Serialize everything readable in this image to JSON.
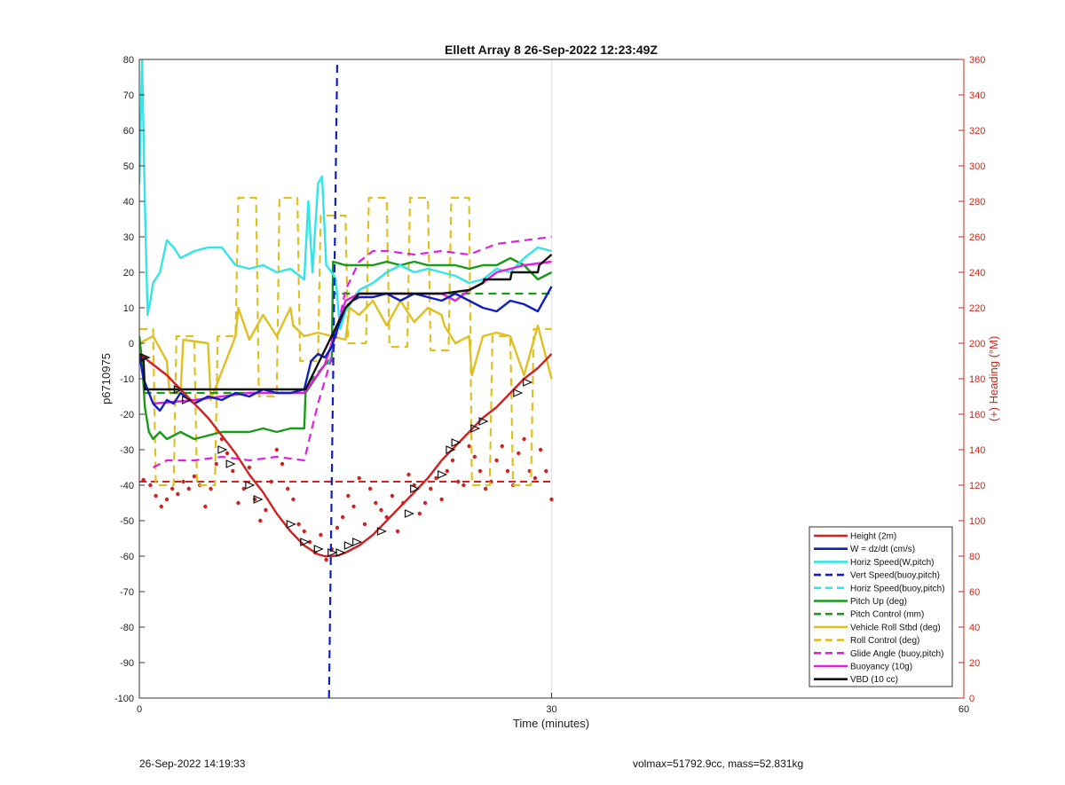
{
  "chart_data": {
    "type": "line",
    "title": "Ellett Array 8 26-Sep-2022 12:23:49Z",
    "xlabel": "Time (minutes)",
    "ylabel": "p6710975",
    "y2label": "(+) Heading (°M)",
    "xlim": [
      0,
      60
    ],
    "ylim": [
      -100,
      80
    ],
    "y2lim": [
      0,
      360
    ],
    "xticks": [
      "0",
      "30",
      "60"
    ],
    "yticks": [
      "-100",
      "-90",
      "-80",
      "-70",
      "-60",
      "-50",
      "-40",
      "-30",
      "-20",
      "-10",
      "0",
      "10",
      "20",
      "30",
      "40",
      "50",
      "60",
      "70",
      "80"
    ],
    "y2ticks": [
      "0",
      "20",
      "40",
      "60",
      "80",
      "100",
      "120",
      "140",
      "160",
      "180",
      "200",
      "220",
      "240",
      "260",
      "280",
      "300",
      "320",
      "340",
      "360"
    ],
    "grid": "x-only",
    "legend_position": "bottom-right",
    "series": [
      {
        "name": "Height (2m)",
        "color": "#d42020",
        "style": "solid",
        "x": [
          0,
          1,
          2,
          3,
          4,
          5,
          6,
          7,
          8,
          9,
          10,
          11,
          12,
          13,
          13.5,
          14,
          14.5,
          15,
          16,
          17,
          18,
          19,
          20,
          21,
          22,
          23,
          24,
          25,
          26,
          27,
          28,
          29,
          30
        ],
        "y": [
          -3,
          -6,
          -9,
          -13,
          -17,
          -21,
          -26,
          -31,
          -37,
          -42,
          -48,
          -53,
          -57,
          -59.5,
          -60,
          -60,
          -59.8,
          -59,
          -57,
          -54,
          -50,
          -46,
          -42,
          -38,
          -33,
          -29,
          -25,
          -21,
          -18,
          -14,
          -10,
          -7,
          -3
        ]
      },
      {
        "name": "W = dz/dt (cm/s)",
        "color": "#1020c0",
        "style": "solid",
        "x": [
          0,
          0.3,
          0.6,
          1,
          1.5,
          2,
          2.5,
          3,
          4,
          5,
          6,
          7,
          8,
          9,
          10,
          11,
          12,
          12.5,
          13,
          13.5,
          14,
          14.5,
          15,
          15.5,
          16,
          17,
          18,
          19,
          20,
          21,
          22,
          23,
          24,
          25,
          26,
          27,
          28,
          29,
          30
        ],
        "y": [
          -3,
          -10,
          -13,
          -17,
          -19,
          -16,
          -17,
          -14,
          -17,
          -15,
          -16,
          -14,
          -15,
          -13,
          -14,
          -14,
          -13,
          -5,
          -3,
          -4,
          -1,
          5,
          10,
          12,
          13,
          13,
          14,
          12,
          14,
          13,
          12,
          14,
          12,
          10,
          9,
          12,
          11,
          9,
          16
        ]
      },
      {
        "name": "Horiz Speed(W,pitch)",
        "color": "#33e5e8",
        "style": "solid",
        "x": [
          0,
          0.2,
          0.4,
          0.6,
          0.8,
          1,
          1.5,
          2,
          2.5,
          3,
          4,
          5,
          6,
          7,
          8,
          9,
          10,
          11,
          12,
          12.3,
          12.6,
          13,
          13.3,
          13.6,
          14,
          14.3,
          14.6,
          15,
          16,
          17,
          18,
          19,
          20,
          21,
          22,
          23,
          24,
          25,
          26,
          27,
          28,
          29,
          30
        ],
        "y": [
          45,
          80,
          40,
          8,
          12,
          17,
          20,
          29,
          27,
          24,
          26,
          27,
          27,
          22,
          21,
          22,
          20,
          21,
          18,
          40,
          20,
          45,
          47,
          22,
          20,
          18,
          4,
          9,
          15,
          17,
          20,
          22,
          20,
          21,
          20,
          19,
          17,
          18,
          21,
          20,
          24,
          27,
          26
        ]
      },
      {
        "name": "Vert Speed(buoy,pitch)",
        "color": "#1020c0",
        "style": "dashed",
        "x": [
          13.8,
          14.1,
          14.4
        ],
        "y": [
          -100,
          -10,
          80
        ]
      },
      {
        "name": "Horiz Speed(buoy,pitch)",
        "color": "#33e5e8",
        "style": "dashed",
        "x": [
          13.8,
          14.3,
          15
        ],
        "y": [
          -6,
          3,
          10
        ]
      },
      {
        "name": "Pitch Up (deg)",
        "color": "#1a9a1a",
        "style": "solid",
        "x": [
          0,
          0.2,
          0.4,
          0.7,
          1,
          1.5,
          2,
          3,
          4,
          5,
          6,
          7,
          8,
          9,
          10,
          11,
          12,
          12.1,
          13.5,
          14,
          14.1,
          15,
          16,
          17,
          18,
          19,
          20,
          21,
          22,
          23,
          24,
          25,
          26,
          27,
          28,
          29,
          30
        ],
        "y": [
          2,
          -5,
          -18,
          -25,
          -27,
          -25,
          -27,
          -25,
          -27,
          -26,
          -25,
          -25,
          -25,
          -24,
          -25,
          -24,
          -24,
          -14,
          -6,
          -5,
          23,
          22,
          22,
          22,
          23,
          22,
          23,
          22,
          22,
          22,
          21,
          22,
          22,
          24,
          22,
          18,
          20
        ]
      },
      {
        "name": "Pitch Control (mm)",
        "color": "#1a9a1a",
        "style": "dashed",
        "x": [
          0.3,
          12,
          12.1,
          14,
          14.1,
          26,
          30
        ],
        "y": [
          -14,
          -14,
          -12,
          -4,
          14,
          14,
          14
        ]
      },
      {
        "name": "Vehicle Roll Stbd (deg)",
        "color": "#e0c020",
        "style": "solid",
        "x": [
          0,
          1,
          2,
          2.2,
          3,
          3.2,
          5,
          5.2,
          7,
          7.2,
          8,
          9,
          10,
          11,
          11.2,
          12,
          13,
          14,
          15,
          15.3,
          16,
          17,
          18,
          19,
          20,
          21,
          22,
          22.2,
          23,
          24,
          24.2,
          25,
          26,
          27,
          28,
          29,
          30
        ],
        "y": [
          0,
          2,
          -5,
          -14,
          -14,
          1,
          0,
          -16,
          2,
          10,
          1,
          8,
          2,
          10,
          5,
          2,
          3,
          2,
          1,
          10,
          8,
          12,
          5,
          12,
          6,
          10,
          8,
          5,
          0,
          2,
          -9,
          2,
          3,
          2,
          -9,
          5,
          -10
        ]
      },
      {
        "name": "Roll Control (deg)",
        "color": "#e0c020",
        "style": "dashed",
        "x": [
          0,
          1,
          1.2,
          2.5,
          2.7,
          4,
          4.2,
          5.5,
          5.7,
          7,
          7.2,
          8.5,
          8.7,
          10,
          10.2,
          11.5,
          11.7,
          13,
          13.2,
          15,
          15.2,
          16.5,
          16.7,
          18,
          18.2,
          19.5,
          19.7,
          21,
          21.2,
          22.5,
          22.7,
          24,
          24.2,
          25.5,
          25.7,
          27,
          27.2,
          28.5,
          28.7,
          30
        ],
        "y": [
          4,
          4,
          -40,
          -40,
          2,
          2,
          -40,
          -40,
          2,
          2,
          41,
          41,
          -15,
          -15,
          41,
          41,
          -5,
          -5,
          36,
          36,
          0,
          0,
          41,
          41,
          -1,
          -1,
          41,
          41,
          -2,
          -2,
          41,
          41,
          -40,
          -40,
          2,
          2,
          -40,
          -40,
          4,
          4
        ]
      },
      {
        "name": "Glide Angle (buoy,pitch)",
        "color": "#e020e0",
        "style": "dashed",
        "x": [
          1,
          2,
          4,
          6,
          8,
          10,
          12,
          13,
          14,
          15,
          16,
          17,
          18,
          20,
          22,
          24,
          26,
          28,
          30
        ],
        "y": [
          -35,
          -33,
          -33,
          -32,
          -33,
          -32,
          -33,
          -17,
          -4,
          15,
          23,
          26,
          26,
          25,
          26,
          25,
          28,
          29,
          30
        ]
      },
      {
        "name": "Buoyancy (10g)",
        "color": "#e020e0",
        "style": "solid",
        "x": [
          1,
          4,
          8,
          12,
          13.5,
          15,
          16,
          20,
          22,
          23,
          24,
          25,
          26,
          28,
          30
        ],
        "y": [
          -17,
          -16,
          -14,
          -14,
          -6,
          12,
          14,
          14,
          14,
          12,
          15,
          17,
          20,
          22,
          23
        ]
      },
      {
        "name": "VBD (10 cc)",
        "color": "#111111",
        "style": "solid",
        "x": [
          0,
          0.3,
          0.4,
          12,
          12.1,
          15,
          16,
          22,
          24,
          25,
          25.1,
          27,
          27.1,
          29,
          29.1,
          30
        ],
        "y": [
          -3,
          -4,
          -13,
          -13,
          -13,
          10,
          14,
          14,
          15,
          17,
          18,
          18,
          20,
          20,
          22,
          25
        ]
      }
    ],
    "ref_line": {
      "y": -39,
      "color": "#d42020",
      "style": "dashed"
    },
    "heading_points": {
      "color": "#d42020",
      "x": [
        0.3,
        0.8,
        1.2,
        1.6,
        2,
        2.4,
        2.8,
        3.2,
        3.6,
        4,
        4.4,
        4.8,
        5.2,
        5.6,
        6,
        6.4,
        6.8,
        7.2,
        7.6,
        8,
        8.4,
        8.8,
        9.2,
        9.6,
        10,
        10.4,
        10.8,
        11.2,
        11.6,
        12,
        12.4,
        12.8,
        13.2,
        13.6,
        14,
        14.4,
        14.8,
        15.2,
        15.6,
        16,
        16.4,
        16.8,
        17.2,
        17.6,
        18,
        18.4,
        18.8,
        19.2,
        19.6,
        20,
        20.4,
        20.8,
        21.2,
        21.6,
        22,
        22.4,
        22.8,
        23.2,
        23.6,
        24,
        24.4,
        24.8,
        25.2,
        25.6,
        26,
        26.4,
        26.8,
        27.2,
        27.6,
        28,
        28.4,
        28.8,
        29.2,
        29.6,
        30
      ],
      "y": [
        123,
        120,
        114,
        108,
        112,
        118,
        115,
        122,
        118,
        125,
        120,
        108,
        118,
        132,
        146,
        138,
        128,
        110,
        118,
        130,
        112,
        100,
        106,
        122,
        140,
        132,
        118,
        112,
        98,
        94,
        88,
        82,
        92,
        78,
        84,
        96,
        102,
        114,
        108,
        124,
        98,
        118,
        110,
        106,
        102,
        114,
        94,
        110,
        126,
        120,
        104,
        110,
        118,
        124,
        112,
        128,
        134,
        122,
        120,
        142,
        136,
        128,
        118,
        122,
        134,
        142,
        128,
        120,
        138,
        146,
        128,
        124,
        140,
        128,
        112
      ]
    },
    "height_markers": {
      "x": [
        0.2,
        0.4,
        2.8,
        3.4,
        6,
        6.6,
        8,
        8.6,
        11,
        12,
        13,
        14,
        14.6,
        15.2,
        15.8,
        17.6,
        19.6,
        20,
        22,
        22.6,
        23,
        24.4,
        25,
        27.5,
        28.2
      ],
      "y": [
        -4,
        -4,
        -13,
        -16,
        -30,
        -34,
        -40,
        -44,
        -51,
        -56,
        -58,
        -59,
        -59,
        -57,
        -56,
        -53,
        -48,
        -41,
        -37,
        -30,
        -28,
        -24,
        -22,
        -14,
        -11
      ]
    }
  },
  "footer": {
    "left": "26-Sep-2022 14:19:33",
    "right": "volmax=51792.9cc, mass=52.831kg"
  }
}
